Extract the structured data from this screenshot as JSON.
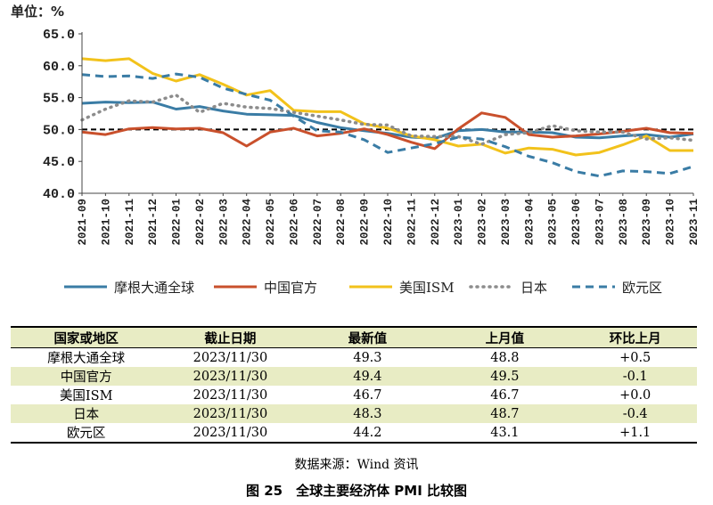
{
  "chart_data": {
    "type": "line",
    "unit_label": "单位：%",
    "ylim": [
      40.0,
      65.0
    ],
    "yticks": [
      "40.0",
      "45.0",
      "50.0",
      "55.0",
      "60.0",
      "65.0"
    ],
    "reference_line": 50,
    "categories": [
      "2021-09",
      "2021-10",
      "2021-11",
      "2021-12",
      "2022-01",
      "2022-02",
      "2022-03",
      "2022-04",
      "2022-05",
      "2022-06",
      "2022-07",
      "2022-08",
      "2022-09",
      "2022-10",
      "2022-11",
      "2022-12",
      "2023-01",
      "2023-02",
      "2023-03",
      "2023-04",
      "2023-05",
      "2023-06",
      "2023-07",
      "2023-08",
      "2023-09",
      "2023-10",
      "2023-11"
    ],
    "series": [
      {
        "name": "摩根大通全球",
        "color": "#3a7ca5",
        "dash": "solid",
        "values": [
          54.1,
          54.3,
          54.2,
          54.3,
          53.2,
          53.6,
          52.9,
          52.4,
          52.3,
          52.2,
          51.1,
          50.3,
          49.8,
          49.4,
          48.8,
          48.6,
          49.8,
          50.0,
          49.6,
          49.6,
          49.5,
          48.8,
          48.7,
          49.0,
          49.2,
          48.8,
          49.3
        ]
      },
      {
        "name": "中国官方",
        "color": "#c9502c",
        "dash": "solid",
        "values": [
          49.6,
          49.2,
          50.1,
          50.3,
          50.1,
          50.2,
          49.5,
          47.4,
          49.6,
          50.2,
          49.0,
          49.4,
          50.1,
          49.2,
          48.0,
          47.0,
          50.1,
          52.6,
          51.9,
          49.2,
          48.8,
          49.0,
          49.3,
          49.7,
          50.2,
          49.5,
          49.4
        ]
      },
      {
        "name": "美国ISM",
        "color": "#f2c21b",
        "dash": "solid",
        "values": [
          61.1,
          60.8,
          61.1,
          58.8,
          57.6,
          58.6,
          57.1,
          55.4,
          56.1,
          53.0,
          52.8,
          52.8,
          50.9,
          50.2,
          49.0,
          48.4,
          47.4,
          47.7,
          46.3,
          47.1,
          46.9,
          46.0,
          46.4,
          47.6,
          49.0,
          46.7,
          46.7
        ]
      },
      {
        "name": "日本",
        "color": "#8c8c8c",
        "dash": "dot",
        "values": [
          51.5,
          53.2,
          54.5,
          54.3,
          55.4,
          52.7,
          54.1,
          53.5,
          53.3,
          52.7,
          52.1,
          51.5,
          50.8,
          50.7,
          49.0,
          48.9,
          48.9,
          47.7,
          49.2,
          49.5,
          50.6,
          49.8,
          49.6,
          49.6,
          48.5,
          48.7,
          48.3
        ]
      },
      {
        "name": "欧元区",
        "color": "#3a7ca5",
        "dash": "dash",
        "values": [
          58.6,
          58.3,
          58.4,
          58.0,
          58.7,
          58.2,
          56.5,
          55.5,
          54.6,
          52.1,
          49.8,
          49.6,
          48.4,
          46.4,
          47.1,
          47.8,
          48.8,
          48.5,
          47.3,
          45.8,
          44.8,
          43.4,
          42.7,
          43.5,
          43.4,
          43.1,
          44.2
        ]
      }
    ]
  },
  "table": {
    "headers": [
      "国家或地区",
      "截止日期",
      "最新值",
      "上月值",
      "环比上月"
    ],
    "rows": [
      [
        "摩根大通全球",
        "2023/11/30",
        "49.3",
        "48.8",
        "+0.5"
      ],
      [
        "中国官方",
        "2023/11/30",
        "49.4",
        "49.5",
        "-0.1"
      ],
      [
        "美国ISM",
        "2023/11/30",
        "46.7",
        "46.7",
        "+0.0"
      ],
      [
        "日本",
        "2023/11/30",
        "48.3",
        "48.7",
        "-0.4"
      ],
      [
        "欧元区",
        "2023/11/30",
        "44.2",
        "43.1",
        "+1.1"
      ]
    ]
  },
  "source": "数据来源：Wind 资讯",
  "caption": "图 25　全球主要经济体 PMI 比较图"
}
